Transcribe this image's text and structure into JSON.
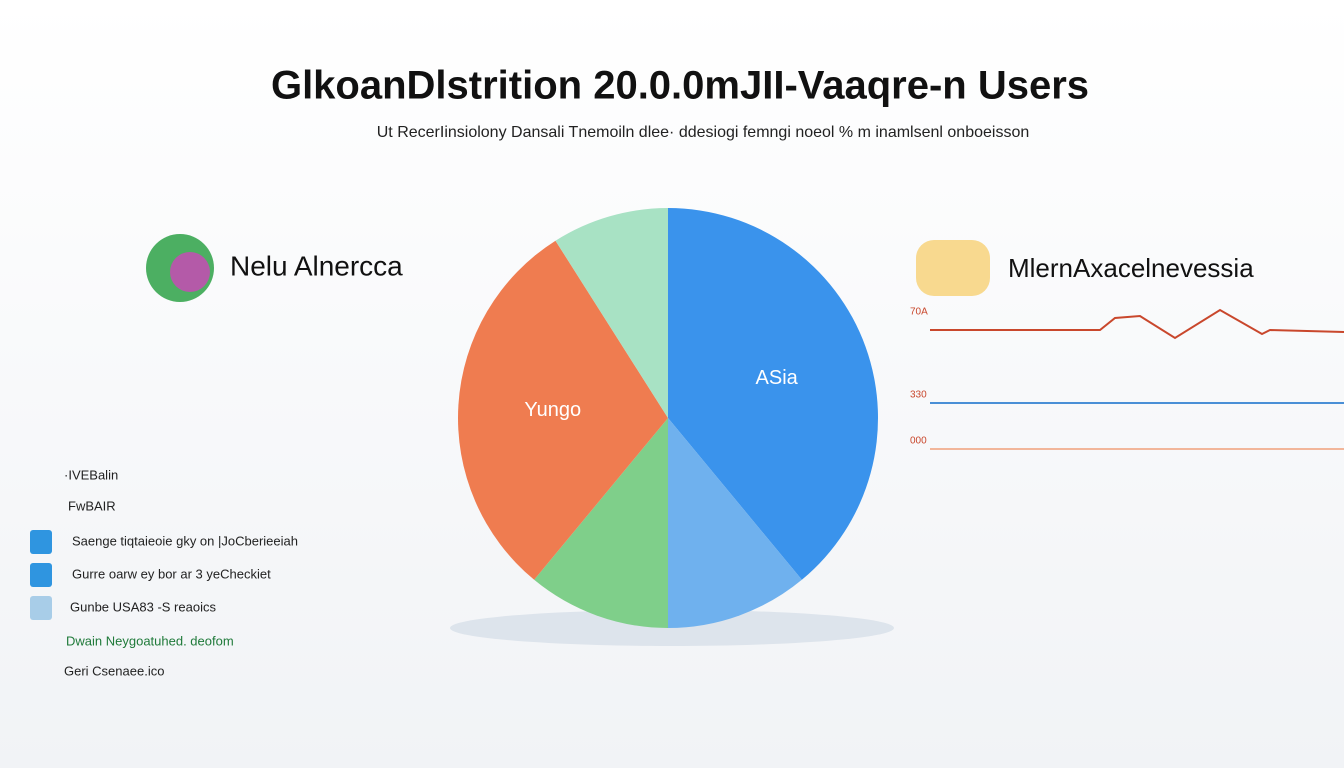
{
  "header": {
    "title": "GlkoanDlstrition 20.0.0mJII-Vaaqre-n Users",
    "subtitle": "Ut RecerIinsiolony Dansali Tnemoiln dlee· ddesiogi femngi noeol % m inamlsenl onboeisson"
  },
  "left_panel": {
    "heading": "Nelu Alnercca",
    "items": [
      "·IVEBalin",
      "FwBAIR",
      "Saenge tiqtaieoie gky on |JoCberieeiah",
      "Gurre oarw ey bor ar 3 yeCheckiet",
      "Gunbe USA83 -S reaoics",
      "Dwain Neygoatuhed. deofom",
      "Geri Csenaee.ico"
    ]
  },
  "right_panel": {
    "heading": "MlernAxacelnevessia",
    "lines": [
      "70A",
      "330",
      "000"
    ]
  },
  "chart_data": {
    "type": "pie",
    "categories": [
      "ASia",
      null,
      null,
      "Yungo",
      null
    ],
    "values": [
      39,
      11,
      11,
      30,
      9
    ],
    "colors": [
      "#3a93ec",
      "#6fb1ee",
      "#7fcf8a",
      "#ef7c50",
      "#a8e2c4"
    ]
  }
}
